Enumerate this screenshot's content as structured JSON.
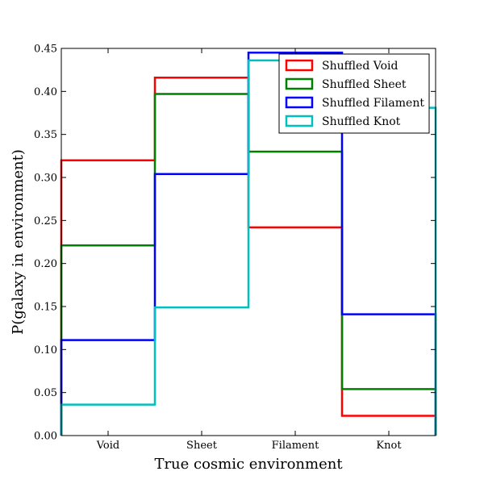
{
  "chart_data": {
    "type": "step",
    "title": "",
    "xlabel": "True cosmic environment",
    "ylabel": "P(galaxy in environment)",
    "categories": [
      "Void",
      "Sheet",
      "Filament",
      "Knot"
    ],
    "ylim": [
      0.0,
      0.45
    ],
    "yticks": [
      "0.00",
      "0.05",
      "0.10",
      "0.15",
      "0.20",
      "0.25",
      "0.30",
      "0.35",
      "0.40",
      "0.45"
    ],
    "grid": false,
    "legend_position": "top-right",
    "series": [
      {
        "name": "Shuffled Void",
        "color": "#ff0000",
        "values": [
          0.32,
          0.416,
          0.242,
          0.023
        ]
      },
      {
        "name": "Shuffled Sheet",
        "color": "#008000",
        "values": [
          0.221,
          0.397,
          0.33,
          0.054
        ]
      },
      {
        "name": "Shuffled Filament",
        "color": "#0000ff",
        "values": [
          0.111,
          0.304,
          0.445,
          0.141
        ]
      },
      {
        "name": "Shuffled Knot",
        "color": "#00bfbf",
        "values": [
          0.036,
          0.149,
          0.436,
          0.381
        ]
      }
    ]
  }
}
